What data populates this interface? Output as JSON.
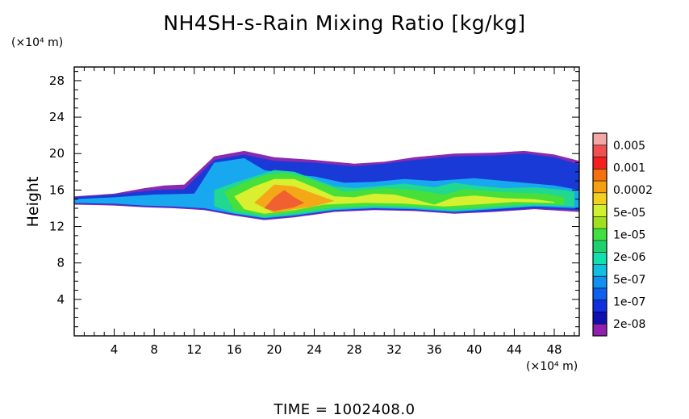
{
  "chart_data": {
    "type": "heatmap",
    "title": "NH4SH-s-Rain Mixing Ratio [kg/kg]",
    "ylabel": "Height",
    "xlabel": "",
    "x_unit": "(×10⁴ m)",
    "y_unit": "(×10⁴ m)",
    "xlim": [
      0,
      50.5
    ],
    "ylim": [
      0,
      29.5
    ],
    "x_ticks": [
      4,
      8,
      12,
      16,
      20,
      24,
      28,
      32,
      36,
      40,
      44,
      48
    ],
    "y_ticks": [
      4,
      8,
      12,
      16,
      20,
      24,
      28
    ],
    "footer": "TIME  =  1002408.0",
    "colorbar": {
      "labels": [
        "0.005",
        "0.001",
        "0.0002",
        "5e-05",
        "1e-05",
        "2e-06",
        "5e-07",
        "1e-07",
        "2e-08"
      ],
      "colors_top_to_bottom": [
        "#f4a7a7",
        "#f05050",
        "#f42020",
        "#f47010",
        "#f4a010",
        "#f0d020",
        "#d0f030",
        "#a0e020",
        "#40e040",
        "#20d070",
        "#10e0b0",
        "#10c0e0",
        "#1090f0",
        "#1060f0",
        "#1030e0",
        "#1010b0",
        "#9020b0"
      ]
    },
    "regions": [
      {
        "level": "2e-08",
        "color": "#8a2ab0",
        "outline": [
          [
            0,
            15.3
          ],
          [
            4,
            15.6
          ],
          [
            7,
            16.2
          ],
          [
            9,
            16.5
          ],
          [
            11,
            16.6
          ],
          [
            14,
            19.7
          ],
          [
            17,
            20.3
          ],
          [
            20,
            19.6
          ],
          [
            24,
            19.3
          ],
          [
            28,
            18.9
          ],
          [
            31,
            19.1
          ],
          [
            34,
            19.6
          ],
          [
            38,
            20.0
          ],
          [
            42,
            20.1
          ],
          [
            45,
            20.3
          ],
          [
            48,
            19.9
          ],
          [
            50.5,
            19.2
          ],
          [
            50.5,
            13.6
          ],
          [
            46,
            13.9
          ],
          [
            42,
            13.6
          ],
          [
            38,
            13.4
          ],
          [
            34,
            13.7
          ],
          [
            30,
            13.8
          ],
          [
            26,
            13.6
          ],
          [
            22,
            13.0
          ],
          [
            19,
            12.7
          ],
          [
            16,
            13.2
          ],
          [
            13,
            13.8
          ],
          [
            10,
            14.0
          ],
          [
            7,
            14.1
          ],
          [
            4,
            14.3
          ],
          [
            0,
            14.4
          ]
        ]
      },
      {
        "level": "1e-07",
        "color": "#1a3ad8",
        "outline": [
          [
            0,
            15.2
          ],
          [
            4,
            15.5
          ],
          [
            8,
            16.0
          ],
          [
            11,
            16.1
          ],
          [
            14,
            19.3
          ],
          [
            17,
            19.9
          ],
          [
            20,
            19.2
          ],
          [
            24,
            19.0
          ],
          [
            28,
            18.6
          ],
          [
            31,
            18.9
          ],
          [
            34,
            19.3
          ],
          [
            38,
            19.7
          ],
          [
            42,
            19.8
          ],
          [
            45,
            20.0
          ],
          [
            48,
            19.6
          ],
          [
            50.5,
            18.8
          ],
          [
            50.5,
            13.8
          ],
          [
            46,
            14.0
          ],
          [
            42,
            13.7
          ],
          [
            38,
            13.5
          ],
          [
            34,
            13.8
          ],
          [
            30,
            13.9
          ],
          [
            26,
            13.7
          ],
          [
            22,
            13.1
          ],
          [
            19,
            12.8
          ],
          [
            16,
            13.3
          ],
          [
            13,
            13.9
          ],
          [
            10,
            14.1
          ],
          [
            7,
            14.2
          ],
          [
            4,
            14.4
          ],
          [
            0,
            14.5
          ]
        ]
      },
      {
        "level": "5e-07",
        "color": "#18a8f0",
        "outline": [
          [
            0,
            15.0
          ],
          [
            4,
            15.2
          ],
          [
            8,
            15.5
          ],
          [
            12,
            15.6
          ],
          [
            14,
            19.0
          ],
          [
            17,
            19.5
          ],
          [
            19,
            18.2
          ],
          [
            21,
            17.8
          ],
          [
            24,
            17.5
          ],
          [
            27,
            16.8
          ],
          [
            30,
            16.9
          ],
          [
            33,
            17.2
          ],
          [
            36,
            17.0
          ],
          [
            40,
            17.3
          ],
          [
            44,
            16.9
          ],
          [
            48,
            16.5
          ],
          [
            50.5,
            16.0
          ],
          [
            50.5,
            14.0
          ],
          [
            46,
            14.2
          ],
          [
            42,
            13.9
          ],
          [
            38,
            13.6
          ],
          [
            34,
            13.9
          ],
          [
            30,
            14.0
          ],
          [
            26,
            13.8
          ],
          [
            22,
            13.2
          ],
          [
            19,
            12.9
          ],
          [
            16,
            13.4
          ],
          [
            13,
            14.0
          ],
          [
            10,
            14.2
          ],
          [
            7,
            14.3
          ],
          [
            4,
            14.5
          ],
          [
            0,
            14.6
          ]
        ]
      },
      {
        "level": "2e-06",
        "color": "#20d890",
        "outline": [
          [
            14,
            16.0
          ],
          [
            16,
            16.8
          ],
          [
            18,
            17.5
          ],
          [
            20,
            18.2
          ],
          [
            22,
            18.0
          ],
          [
            24,
            17.2
          ],
          [
            26,
            16.4
          ],
          [
            28,
            16.2
          ],
          [
            30,
            16.4
          ],
          [
            33,
            16.7
          ],
          [
            36,
            16.3
          ],
          [
            38,
            16.8
          ],
          [
            40,
            16.5
          ],
          [
            43,
            16.2
          ],
          [
            46,
            16.3
          ],
          [
            49,
            16.0
          ],
          [
            50,
            15.8
          ],
          [
            50,
            14.2
          ],
          [
            46,
            14.3
          ],
          [
            42,
            14.0
          ],
          [
            38,
            13.7
          ],
          [
            34,
            14.0
          ],
          [
            30,
            14.1
          ],
          [
            26,
            13.9
          ],
          [
            22,
            13.3
          ],
          [
            19,
            13.0
          ],
          [
            16,
            13.5
          ],
          [
            14,
            14.2
          ]
        ]
      },
      {
        "level": "1e-05",
        "color": "#48e038",
        "outline": [
          [
            15,
            15.8
          ],
          [
            17,
            16.8
          ],
          [
            19,
            17.6
          ],
          [
            21,
            17.9
          ],
          [
            23,
            17.4
          ],
          [
            25,
            16.6
          ],
          [
            27,
            15.8
          ],
          [
            29,
            16.0
          ],
          [
            31,
            16.2
          ],
          [
            34,
            16.0
          ],
          [
            37,
            15.5
          ],
          [
            39,
            16.1
          ],
          [
            41,
            15.9
          ],
          [
            44,
            15.7
          ],
          [
            47,
            15.6
          ],
          [
            49,
            15.2
          ],
          [
            49,
            14.4
          ],
          [
            46,
            14.5
          ],
          [
            42,
            14.2
          ],
          [
            38,
            13.9
          ],
          [
            34,
            14.2
          ],
          [
            30,
            14.3
          ],
          [
            26,
            14.1
          ],
          [
            22,
            13.5
          ],
          [
            19,
            13.2
          ],
          [
            16,
            13.8
          ]
        ]
      },
      {
        "level": "5e-05",
        "color": "#d8f030",
        "outline": [
          [
            16,
            15.3
          ],
          [
            18,
            16.4
          ],
          [
            20,
            17.2
          ],
          [
            22,
            17.2
          ],
          [
            24,
            16.3
          ],
          [
            26,
            15.3
          ],
          [
            28,
            15.2
          ],
          [
            30,
            15.6
          ],
          [
            32,
            15.5
          ],
          [
            34,
            15.0
          ],
          [
            36,
            14.4
          ],
          [
            38,
            15.2
          ],
          [
            40,
            15.4
          ],
          [
            43,
            15.1
          ],
          [
            46,
            15.0
          ],
          [
            48,
            14.7
          ],
          [
            48,
            14.6
          ],
          [
            44,
            14.7
          ],
          [
            40,
            14.4
          ],
          [
            37,
            14.2
          ],
          [
            33,
            14.5
          ],
          [
            29,
            14.6
          ],
          [
            25,
            14.4
          ],
          [
            22,
            13.8
          ],
          [
            19,
            13.4
          ],
          [
            17,
            13.9
          ]
        ]
      },
      {
        "level": "0.0002",
        "color": "#f4a818",
        "outline": [
          [
            18,
            14.6
          ],
          [
            19,
            15.6
          ],
          [
            20,
            16.6
          ],
          [
            22,
            16.4
          ],
          [
            24,
            15.6
          ],
          [
            26,
            14.8
          ],
          [
            24,
            14.2
          ],
          [
            22,
            13.9
          ],
          [
            20,
            13.5
          ]
        ]
      },
      {
        "level": "0.001",
        "color": "#f06030",
        "outline": [
          [
            19,
            14.0
          ],
          [
            20,
            15.2
          ],
          [
            21,
            16.0
          ],
          [
            22,
            15.2
          ],
          [
            23,
            14.6
          ],
          [
            22,
            14.1
          ],
          [
            20,
            13.7
          ]
        ]
      }
    ]
  }
}
